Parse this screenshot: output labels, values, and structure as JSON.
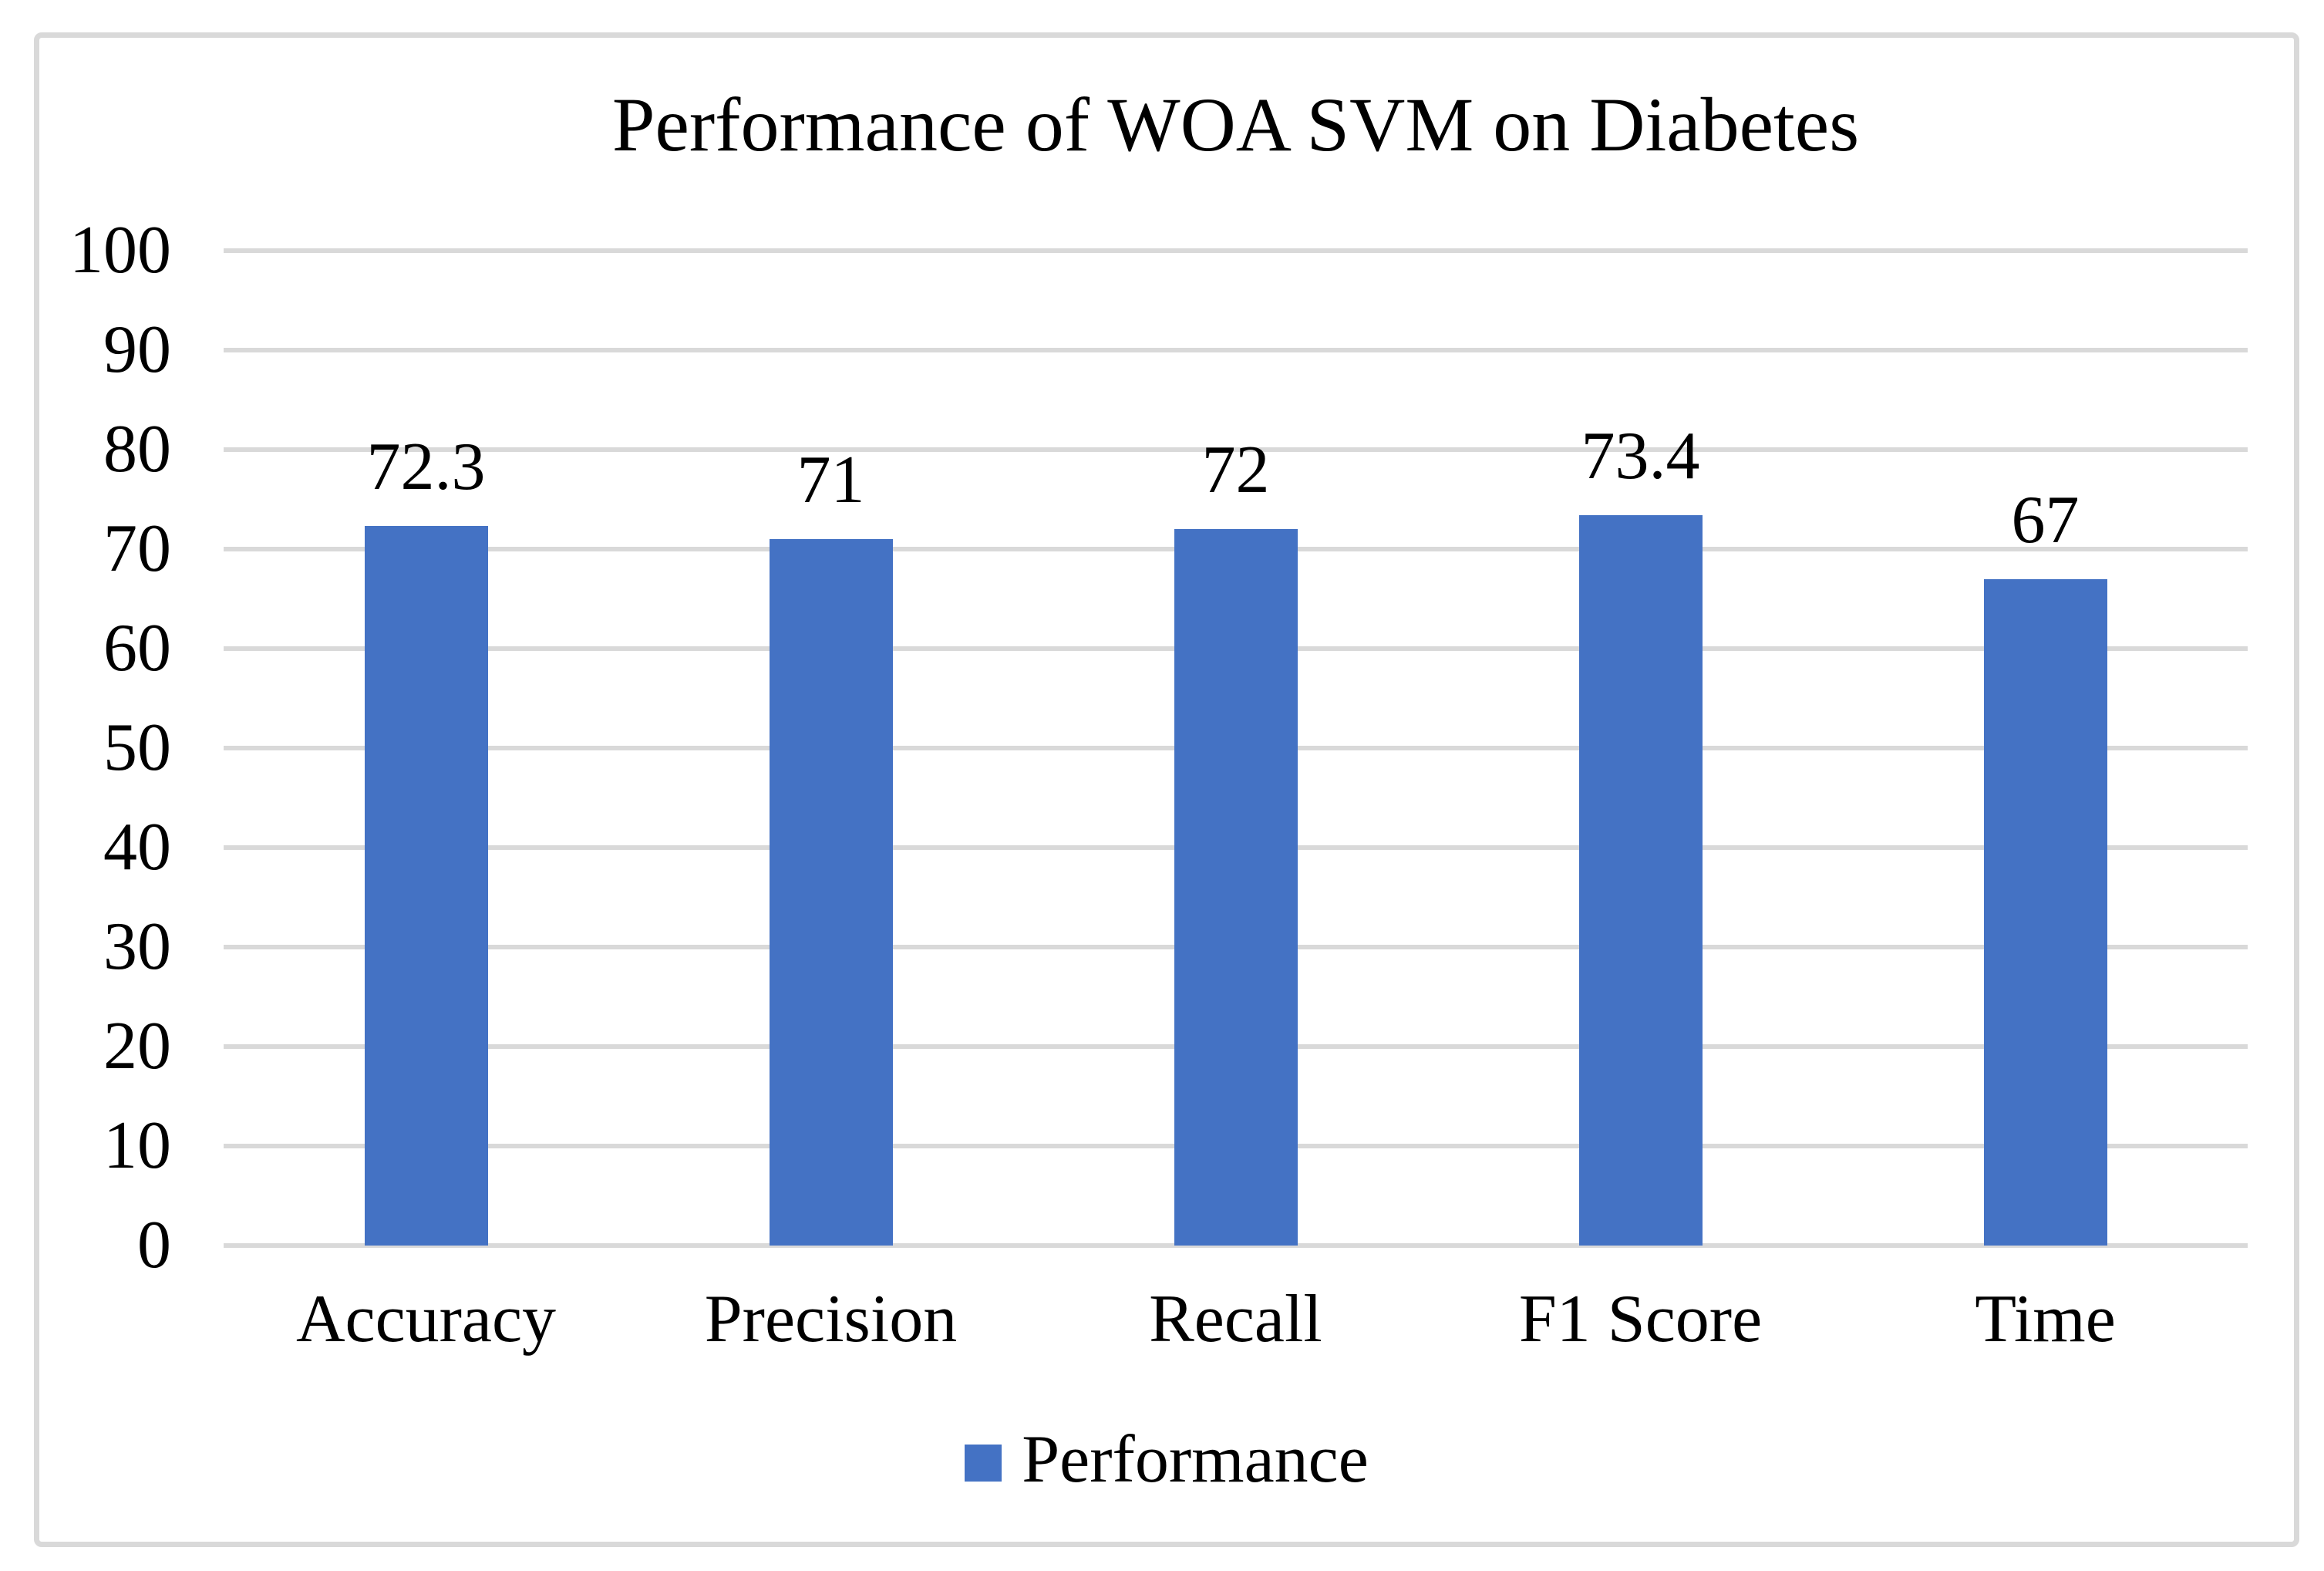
{
  "chart_data": {
    "type": "bar",
    "title": "Performance of WOA SVM on Diabetes",
    "categories": [
      "Accuracy",
      "Precision",
      "Recall",
      "F1 Score",
      "Time"
    ],
    "series": [
      {
        "name": "Performance",
        "values": [
          72.3,
          71,
          72,
          73.4,
          67
        ]
      }
    ],
    "value_labels": [
      "72.3",
      "71",
      "72",
      "73.4",
      "67"
    ],
    "xlabel": "",
    "ylabel": "",
    "ylim": [
      0,
      100
    ],
    "yticks": [
      0,
      10,
      20,
      30,
      40,
      50,
      60,
      70,
      80,
      90,
      100
    ],
    "grid": true,
    "legend_position": "bottom",
    "colors": {
      "bar": "#4472C4",
      "gridline": "#D9D9D9",
      "frame_border": "#D9D9D9",
      "text": "#000000"
    }
  }
}
